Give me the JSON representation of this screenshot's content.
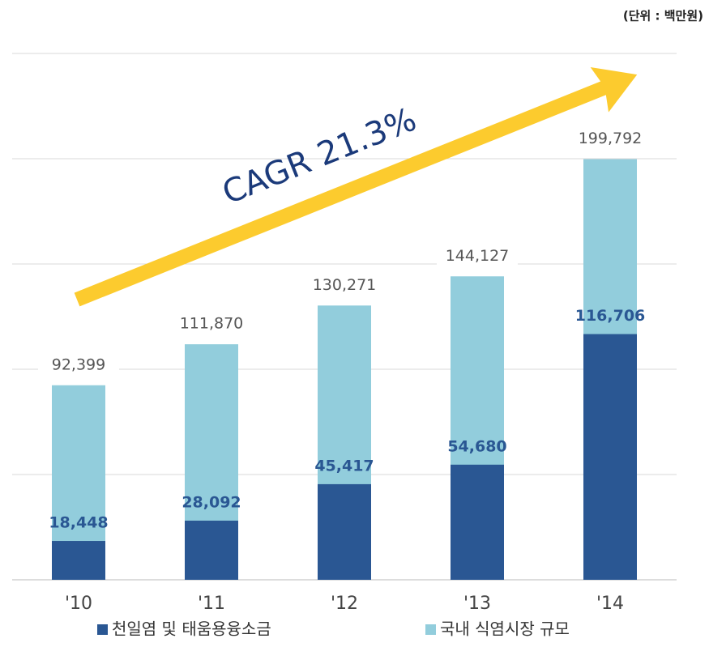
{
  "chart_data": {
    "type": "bar",
    "unit_note": "(단위 : 백만원)",
    "annotation": "CAGR 21.3%",
    "categories": [
      "'10",
      "'11",
      "'12",
      "'13",
      "'14"
    ],
    "series": [
      {
        "name": "천일염 및 태움용융소금",
        "color": "#2a5793",
        "values": [
          18448,
          28092,
          45417,
          54680,
          116706
        ],
        "value_labels": [
          "18,448",
          "28,092",
          "45,417",
          "54,680",
          "116,706"
        ]
      },
      {
        "name": "국내 식염시장 규모",
        "color": "#92cddc",
        "values": [
          92399,
          111870,
          130271,
          144127,
          199792
        ],
        "value_labels": [
          "92,399",
          "111,870",
          "130,271",
          "144,127",
          "199,792"
        ]
      }
    ],
    "ylim": [
      0,
      250000
    ],
    "yticks": [
      0,
      50000,
      100000,
      150000,
      200000,
      250000
    ],
    "grid": true
  }
}
